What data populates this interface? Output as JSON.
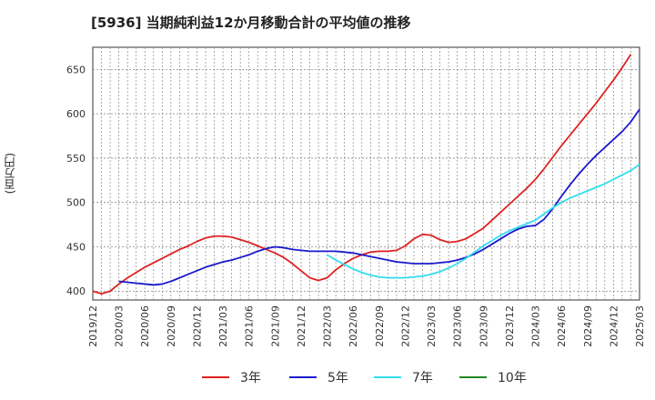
{
  "title": "[5936]  当期純利益12か月移動合計の平均値の推移",
  "ylabel": "(百万円)",
  "colors": {
    "3年": "#dd2222",
    "5年": "#1a1acc",
    "7年": "#33ddee",
    "10年": "#228822"
  },
  "chart_data": {
    "type": "line",
    "title": "[5936]  当期純利益12か月移動合計の平均値の推移",
    "ylabel": "(百万円)",
    "ylim": [
      390,
      675
    ],
    "yticks": [
      400,
      450,
      500,
      550,
      600,
      650
    ],
    "x_ticks": [
      "2019/12",
      "2020/03",
      "2020/06",
      "2020/09",
      "2020/12",
      "2021/03",
      "2021/06",
      "2021/09",
      "2021/12",
      "2022/03",
      "2022/06",
      "2022/09",
      "2022/12",
      "2023/03",
      "2023/06",
      "2023/09",
      "2023/12",
      "2024/03",
      "2024/06",
      "2024/09",
      "2024/12",
      "2025/03"
    ],
    "xlim": [
      "2019/12",
      "2025/03"
    ],
    "grid": true,
    "legend_position": "bottom",
    "series": [
      {
        "name": "3年",
        "color": "#dd2222",
        "points": [
          [
            "2019/12",
            400
          ],
          [
            "2020/01",
            397
          ],
          [
            "2020/02",
            400
          ],
          [
            "2020/03",
            408
          ],
          [
            "2020/04",
            415
          ],
          [
            "2020/05",
            421
          ],
          [
            "2020/06",
            427
          ],
          [
            "2020/07",
            432
          ],
          [
            "2020/08",
            437
          ],
          [
            "2020/09",
            442
          ],
          [
            "2020/10",
            447
          ],
          [
            "2020/11",
            451
          ],
          [
            "2020/12",
            456
          ],
          [
            "2021/01",
            460
          ],
          [
            "2021/02",
            462
          ],
          [
            "2021/03",
            462
          ],
          [
            "2021/04",
            461
          ],
          [
            "2021/05",
            458
          ],
          [
            "2021/06",
            455
          ],
          [
            "2021/07",
            451
          ],
          [
            "2021/08",
            447
          ],
          [
            "2021/09",
            443
          ],
          [
            "2021/10",
            438
          ],
          [
            "2021/11",
            431
          ],
          [
            "2021/12",
            423
          ],
          [
            "2022/01",
            415
          ],
          [
            "2022/02",
            412
          ],
          [
            "2022/03",
            415
          ],
          [
            "2022/04",
            424
          ],
          [
            "2022/05",
            431
          ],
          [
            "2022/06",
            437
          ],
          [
            "2022/07",
            441
          ],
          [
            "2022/08",
            444
          ],
          [
            "2022/09",
            445
          ],
          [
            "2022/10",
            445
          ],
          [
            "2022/11",
            446
          ],
          [
            "2022/12",
            451
          ],
          [
            "2023/01",
            459
          ],
          [
            "2023/02",
            464
          ],
          [
            "2023/03",
            463
          ],
          [
            "2023/04",
            458
          ],
          [
            "2023/05",
            455
          ],
          [
            "2023/06",
            456
          ],
          [
            "2023/07",
            459
          ],
          [
            "2023/08",
            465
          ],
          [
            "2023/09",
            471
          ],
          [
            "2023/10",
            480
          ],
          [
            "2023/11",
            489
          ],
          [
            "2023/12",
            498
          ],
          [
            "2024/01",
            507
          ],
          [
            "2024/02",
            516
          ],
          [
            "2024/03",
            526
          ],
          [
            "2024/04",
            538
          ],
          [
            "2024/05",
            551
          ],
          [
            "2024/06",
            564
          ],
          [
            "2024/07",
            576
          ],
          [
            "2024/08",
            588
          ],
          [
            "2024/09",
            600
          ],
          [
            "2024/10",
            612
          ],
          [
            "2024/11",
            625
          ],
          [
            "2024/12",
            638
          ],
          [
            "2025/01",
            652
          ],
          [
            "2025/02",
            667
          ]
        ]
      },
      {
        "name": "5年",
        "color": "#1a1acc",
        "points": [
          [
            "2020/03",
            411
          ],
          [
            "2020/04",
            410
          ],
          [
            "2020/05",
            409
          ],
          [
            "2020/06",
            408
          ],
          [
            "2020/07",
            407
          ],
          [
            "2020/08",
            408
          ],
          [
            "2020/09",
            411
          ],
          [
            "2020/10",
            415
          ],
          [
            "2020/11",
            419
          ],
          [
            "2020/12",
            423
          ],
          [
            "2021/01",
            427
          ],
          [
            "2021/02",
            430
          ],
          [
            "2021/03",
            433
          ],
          [
            "2021/04",
            435
          ],
          [
            "2021/05",
            438
          ],
          [
            "2021/06",
            441
          ],
          [
            "2021/07",
            445
          ],
          [
            "2021/08",
            448
          ],
          [
            "2021/09",
            450
          ],
          [
            "2021/10",
            449
          ],
          [
            "2021/11",
            447
          ],
          [
            "2021/12",
            446
          ],
          [
            "2022/01",
            445
          ],
          [
            "2022/02",
            445
          ],
          [
            "2022/03",
            445
          ],
          [
            "2022/04",
            445
          ],
          [
            "2022/05",
            444
          ],
          [
            "2022/06",
            443
          ],
          [
            "2022/07",
            441
          ],
          [
            "2022/08",
            439
          ],
          [
            "2022/09",
            437
          ],
          [
            "2022/10",
            435
          ],
          [
            "2022/11",
            433
          ],
          [
            "2022/12",
            432
          ],
          [
            "2023/01",
            431
          ],
          [
            "2023/02",
            431
          ],
          [
            "2023/03",
            431
          ],
          [
            "2023/04",
            432
          ],
          [
            "2023/05",
            433
          ],
          [
            "2023/06",
            435
          ],
          [
            "2023/07",
            438
          ],
          [
            "2023/08",
            442
          ],
          [
            "2023/09",
            447
          ],
          [
            "2023/10",
            453
          ],
          [
            "2023/11",
            459
          ],
          [
            "2023/12",
            465
          ],
          [
            "2024/01",
            470
          ],
          [
            "2024/02",
            473
          ],
          [
            "2024/03",
            474
          ],
          [
            "2024/04",
            481
          ],
          [
            "2024/05",
            493
          ],
          [
            "2024/06",
            507
          ],
          [
            "2024/07",
            520
          ],
          [
            "2024/08",
            532
          ],
          [
            "2024/09",
            543
          ],
          [
            "2024/10",
            553
          ],
          [
            "2024/11",
            562
          ],
          [
            "2024/12",
            571
          ],
          [
            "2025/01",
            580
          ],
          [
            "2025/02",
            591
          ],
          [
            "2025/03",
            605
          ]
        ]
      },
      {
        "name": "7年",
        "color": "#33ddee",
        "points": [
          [
            "2022/03",
            441
          ],
          [
            "2022/04",
            435
          ],
          [
            "2022/05",
            430
          ],
          [
            "2022/06",
            425
          ],
          [
            "2022/07",
            421
          ],
          [
            "2022/08",
            418
          ],
          [
            "2022/09",
            416
          ],
          [
            "2022/10",
            415
          ],
          [
            "2022/11",
            415
          ],
          [
            "2022/12",
            415
          ],
          [
            "2023/01",
            416
          ],
          [
            "2023/02",
            417
          ],
          [
            "2023/03",
            419
          ],
          [
            "2023/04",
            422
          ],
          [
            "2023/05",
            426
          ],
          [
            "2023/06",
            431
          ],
          [
            "2023/07",
            437
          ],
          [
            "2023/08",
            444
          ],
          [
            "2023/09",
            451
          ],
          [
            "2023/10",
            457
          ],
          [
            "2023/11",
            463
          ],
          [
            "2023/12",
            468
          ],
          [
            "2024/01",
            472
          ],
          [
            "2024/02",
            476
          ],
          [
            "2024/03",
            480
          ],
          [
            "2024/04",
            487
          ],
          [
            "2024/05",
            494
          ],
          [
            "2024/06",
            500
          ],
          [
            "2024/07",
            505
          ],
          [
            "2024/08",
            509
          ],
          [
            "2024/09",
            513
          ],
          [
            "2024/10",
            517
          ],
          [
            "2024/11",
            521
          ],
          [
            "2024/12",
            526
          ],
          [
            "2025/01",
            531
          ],
          [
            "2025/02",
            536
          ],
          [
            "2025/03",
            543
          ]
        ]
      },
      {
        "name": "10年",
        "color": "#228822",
        "points": []
      }
    ]
  }
}
